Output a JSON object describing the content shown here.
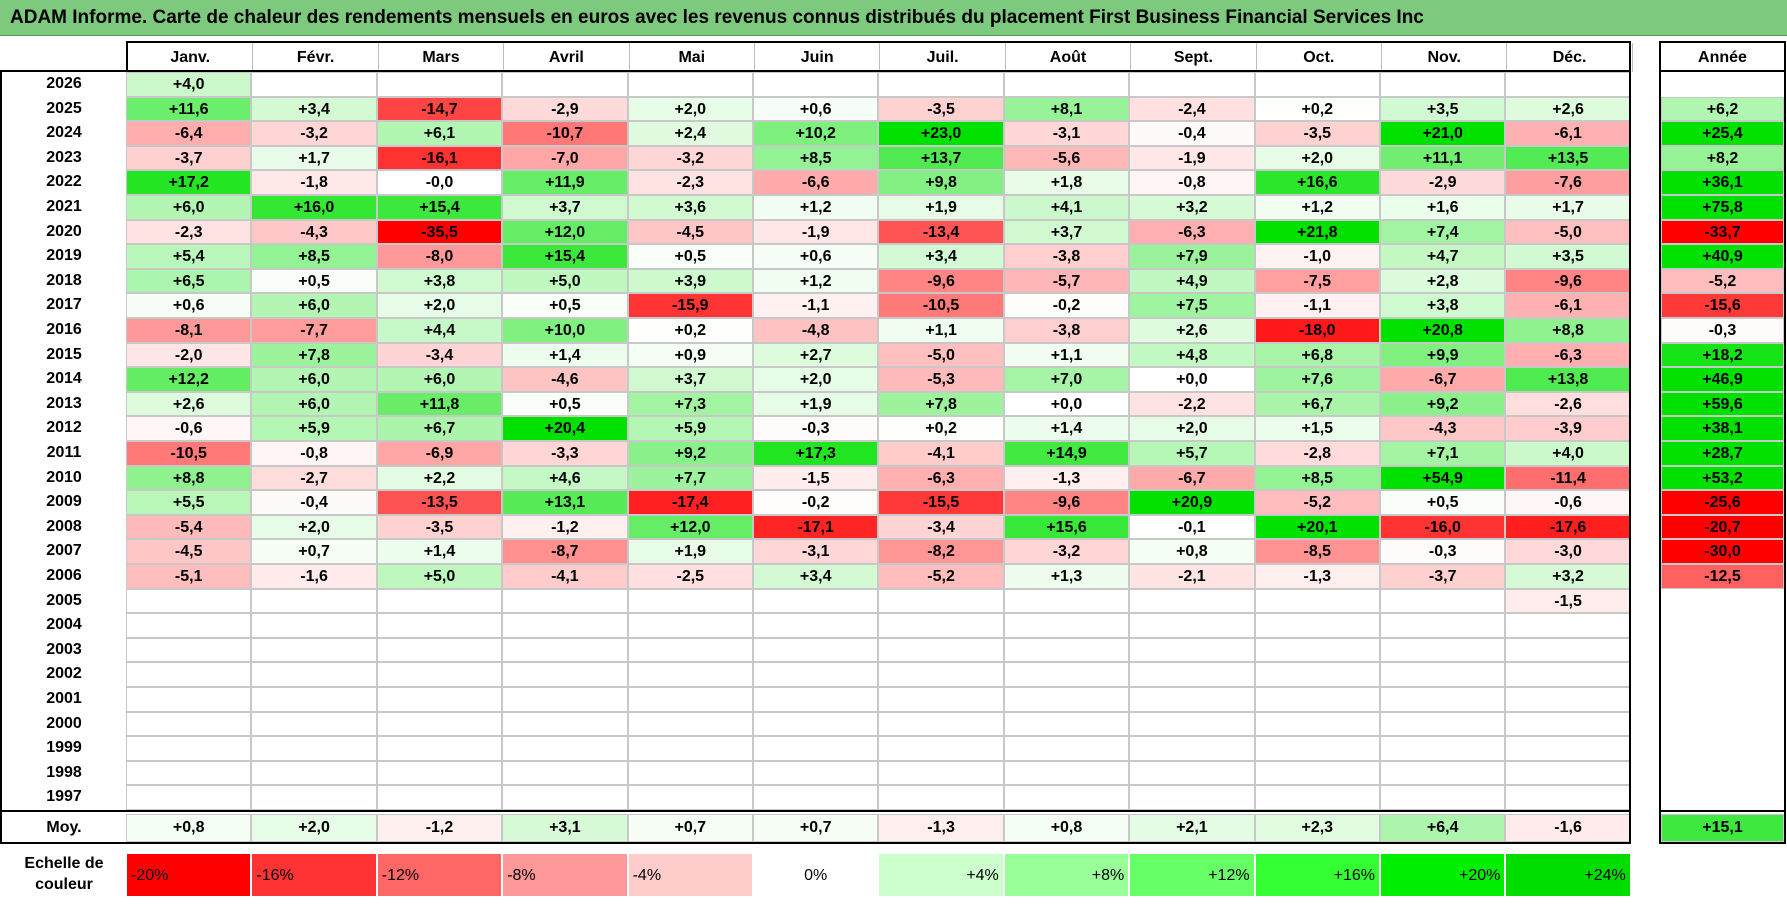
{
  "title": "ADAM Informe. Carte de chaleur des rendements mensuels en euros avec les revenus connus distribués du placement First Business Financial Services Inc",
  "chart_data": {
    "type": "heatmap",
    "title": "ADAM Informe. Carte de chaleur des rendements mensuels en euros avec les revenus connus distribués du placement First Business Financial Services Inc",
    "months": [
      "Janv.",
      "Févr.",
      "Mars",
      "Avril",
      "Mai",
      "Juin",
      "Juil.",
      "Août",
      "Sept.",
      "Oct.",
      "Nov.",
      "Déc."
    ],
    "year_column_label": "Année",
    "rows": [
      {
        "year": "2026",
        "months": [
          "+4,0",
          "",
          "",
          "",
          "",
          "",
          "",
          "",
          "",
          "",
          "",
          ""
        ],
        "annual": ""
      },
      {
        "year": "2025",
        "months": [
          "+11,6",
          "+3,4",
          "-14,7",
          "-2,9",
          "+2,0",
          "+0,6",
          "-3,5",
          "+8,1",
          "-2,4",
          "+0,2",
          "+3,5",
          "+2,6"
        ],
        "annual": "+6,2"
      },
      {
        "year": "2024",
        "months": [
          "-6,4",
          "-3,2",
          "+6,1",
          "-10,7",
          "+2,4",
          "+10,2",
          "+23,0",
          "-3,1",
          "-0,4",
          "-3,5",
          "+21,0",
          "-6,1"
        ],
        "annual": "+25,4"
      },
      {
        "year": "2023",
        "months": [
          "-3,7",
          "+1,7",
          "-16,1",
          "-7,0",
          "-3,2",
          "+8,5",
          "+13,7",
          "-5,6",
          "-1,9",
          "+2,0",
          "+11,1",
          "+13,5"
        ],
        "annual": "+8,2"
      },
      {
        "year": "2022",
        "months": [
          "+17,2",
          "-1,8",
          "-0,0",
          "+11,9",
          "-2,3",
          "-6,6",
          "+9,8",
          "+1,8",
          "-0,8",
          "+16,6",
          "-2,9",
          "-7,6"
        ],
        "annual": "+36,1"
      },
      {
        "year": "2021",
        "months": [
          "+6,0",
          "+16,0",
          "+15,4",
          "+3,7",
          "+3,6",
          "+1,2",
          "+1,9",
          "+4,1",
          "+3,2",
          "+1,2",
          "+1,6",
          "+1,7"
        ],
        "annual": "+75,8"
      },
      {
        "year": "2020",
        "months": [
          "-2,3",
          "-4,3",
          "-35,5",
          "+12,0",
          "-4,5",
          "-1,9",
          "-13,4",
          "+3,7",
          "-6,3",
          "+21,8",
          "+7,4",
          "-5,0"
        ],
        "annual": "-33,7"
      },
      {
        "year": "2019",
        "months": [
          "+5,4",
          "+8,5",
          "-8,0",
          "+15,4",
          "+0,5",
          "+0,6",
          "+3,4",
          "-3,8",
          "+7,9",
          "-1,0",
          "+4,7",
          "+3,5"
        ],
        "annual": "+40,9"
      },
      {
        "year": "2018",
        "months": [
          "+6,5",
          "+0,5",
          "+3,8",
          "+5,0",
          "+3,9",
          "+1,2",
          "-9,6",
          "-5,7",
          "+4,9",
          "-7,5",
          "+2,8",
          "-9,6"
        ],
        "annual": "-5,2"
      },
      {
        "year": "2017",
        "months": [
          "+0,6",
          "+6,0",
          "+2,0",
          "+0,5",
          "-15,9",
          "-1,1",
          "-10,5",
          "-0,2",
          "+7,5",
          "-1,1",
          "+3,8",
          "-6,1"
        ],
        "annual": "-15,6"
      },
      {
        "year": "2016",
        "months": [
          "-8,1",
          "-7,7",
          "+4,4",
          "+10,0",
          "+0,2",
          "-4,8",
          "+1,1",
          "-3,8",
          "+2,6",
          "-18,0",
          "+20,8",
          "+8,8"
        ],
        "annual": "-0,3"
      },
      {
        "year": "2015",
        "months": [
          "-2,0",
          "+7,8",
          "-3,4",
          "+1,4",
          "+0,9",
          "+2,7",
          "-5,0",
          "+1,1",
          "+4,8",
          "+6,8",
          "+9,9",
          "-6,3"
        ],
        "annual": "+18,2"
      },
      {
        "year": "2014",
        "months": [
          "+12,2",
          "+6,0",
          "+6,0",
          "-4,6",
          "+3,7",
          "+2,0",
          "-5,3",
          "+7,0",
          "+0,0",
          "+7,6",
          "-6,7",
          "+13,8"
        ],
        "annual": "+46,9"
      },
      {
        "year": "2013",
        "months": [
          "+2,6",
          "+6,0",
          "+11,8",
          "+0,5",
          "+7,3",
          "+1,9",
          "+7,8",
          "+0,0",
          "-2,2",
          "+6,7",
          "+9,2",
          "-2,6"
        ],
        "annual": "+59,6"
      },
      {
        "year": "2012",
        "months": [
          "-0,6",
          "+5,9",
          "+6,7",
          "+20,4",
          "+5,9",
          "-0,3",
          "+0,2",
          "+1,4",
          "+2,0",
          "+1,5",
          "-4,3",
          "-3,9"
        ],
        "annual": "+38,1"
      },
      {
        "year": "2011",
        "months": [
          "-10,5",
          "-0,8",
          "-6,9",
          "-3,3",
          "+9,2",
          "+17,3",
          "-4,1",
          "+14,9",
          "+5,7",
          "-2,8",
          "+7,1",
          "+4,0"
        ],
        "annual": "+28,7"
      },
      {
        "year": "2010",
        "months": [
          "+8,8",
          "-2,7",
          "+2,2",
          "+4,6",
          "+7,7",
          "-1,5",
          "-6,3",
          "-1,3",
          "-6,7",
          "+8,5",
          "+54,9",
          "-11,4"
        ],
        "annual": "+53,2"
      },
      {
        "year": "2009",
        "months": [
          "+5,5",
          "-0,4",
          "-13,5",
          "+13,1",
          "-17,4",
          "-0,2",
          "-15,5",
          "-9,6",
          "+20,9",
          "-5,2",
          "+0,5",
          "-0,6"
        ],
        "annual": "-25,6"
      },
      {
        "year": "2008",
        "months": [
          "-5,4",
          "+2,0",
          "-3,5",
          "-1,2",
          "+12,0",
          "-17,1",
          "-3,4",
          "+15,6",
          "-0,1",
          "+20,1",
          "-16,0",
          "-17,6"
        ],
        "annual": "-20,7"
      },
      {
        "year": "2007",
        "months": [
          "-4,5",
          "+0,7",
          "+1,4",
          "-8,7",
          "+1,9",
          "-3,1",
          "-8,2",
          "-3,2",
          "+0,8",
          "-8,5",
          "-0,3",
          "-3,0"
        ],
        "annual": "-30,0"
      },
      {
        "year": "2006",
        "months": [
          "-5,1",
          "-1,6",
          "+5,0",
          "-4,1",
          "-2,5",
          "+3,4",
          "-5,2",
          "+1,3",
          "-2,1",
          "-1,3",
          "-3,7",
          "+3,2"
        ],
        "annual": "-12,5"
      },
      {
        "year": "2005",
        "months": [
          "",
          "",
          "",
          "",
          "",
          "",
          "",
          "",
          "",
          "",
          "",
          "-1,5"
        ],
        "annual": ""
      },
      {
        "year": "2004",
        "months": [
          "",
          "",
          "",
          "",
          "",
          "",
          "",
          "",
          "",
          "",
          "",
          ""
        ],
        "annual": ""
      },
      {
        "year": "2003",
        "months": [
          "",
          "",
          "",
          "",
          "",
          "",
          "",
          "",
          "",
          "",
          "",
          ""
        ],
        "annual": ""
      },
      {
        "year": "2002",
        "months": [
          "",
          "",
          "",
          "",
          "",
          "",
          "",
          "",
          "",
          "",
          "",
          ""
        ],
        "annual": ""
      },
      {
        "year": "2001",
        "months": [
          "",
          "",
          "",
          "",
          "",
          "",
          "",
          "",
          "",
          "",
          "",
          ""
        ],
        "annual": ""
      },
      {
        "year": "2000",
        "months": [
          "",
          "",
          "",
          "",
          "",
          "",
          "",
          "",
          "",
          "",
          "",
          ""
        ],
        "annual": ""
      },
      {
        "year": "1999",
        "months": [
          "",
          "",
          "",
          "",
          "",
          "",
          "",
          "",
          "",
          "",
          "",
          ""
        ],
        "annual": ""
      },
      {
        "year": "1998",
        "months": [
          "",
          "",
          "",
          "",
          "",
          "",
          "",
          "",
          "",
          "",
          "",
          ""
        ],
        "annual": ""
      },
      {
        "year": "1997",
        "months": [
          "",
          "",
          "",
          "",
          "",
          "",
          "",
          "",
          "",
          "",
          "",
          ""
        ],
        "annual": ""
      }
    ],
    "average": {
      "label": "Moy.",
      "months": [
        "+0,8",
        "+2,0",
        "-1,2",
        "+3,1",
        "+0,7",
        "+0,7",
        "-1,3",
        "+0,8",
        "+2,1",
        "+2,3",
        "+6,4",
        "-1,6"
      ],
      "annual": "+15,1"
    },
    "scale": {
      "label_line1": "Echelle de",
      "label_line2": "couleur",
      "steps": [
        {
          "label": "-20%",
          "value": -20,
          "color": "#ff0000"
        },
        {
          "label": "-16%",
          "value": -16,
          "color": "#ff3333"
        },
        {
          "label": "-12%",
          "value": -12,
          "color": "#ff6666"
        },
        {
          "label": "-8%",
          "value": -8,
          "color": "#ff9999"
        },
        {
          "label": "-4%",
          "value": -4,
          "color": "#ffcccc"
        },
        {
          "label": "0%",
          "value": 0,
          "color": "#ffffff"
        },
        {
          "label": "+4%",
          "value": 4,
          "color": "#ccffcc"
        },
        {
          "label": "+8%",
          "value": 8,
          "color": "#99ff99"
        },
        {
          "label": "+12%",
          "value": 12,
          "color": "#66ff66"
        },
        {
          "label": "+16%",
          "value": 16,
          "color": "#33ff33"
        },
        {
          "label": "+20%",
          "value": 20,
          "color": "#00ee00"
        },
        {
          "label": "+24%",
          "value": 24,
          "color": "#00dd00"
        }
      ]
    }
  }
}
